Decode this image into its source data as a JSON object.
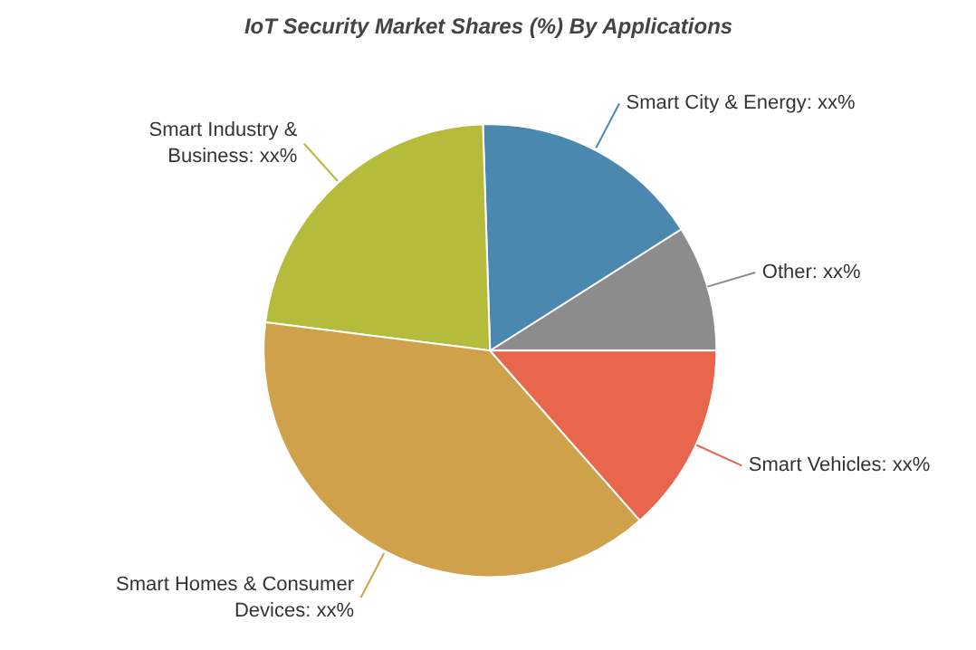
{
  "chart_data": {
    "type": "pie",
    "title": "IoT Security Market Shares (%) By Applications",
    "categories": [
      "Other",
      "Smart City & Energy",
      "Smart Industry & Business",
      "Smart Homes & Consumer Devices",
      "Smart Vehicles"
    ],
    "values": [
      9,
      16.5,
      22.5,
      38.5,
      13.5
    ],
    "colors": [
      "#8c8c8c",
      "#4a88b0",
      "#b5bb3a",
      "#cfa14a",
      "#e8664c"
    ],
    "value_labels": [
      "xx%",
      "xx%",
      "xx%",
      "xx%",
      "xx%"
    ],
    "legend": false
  }
}
